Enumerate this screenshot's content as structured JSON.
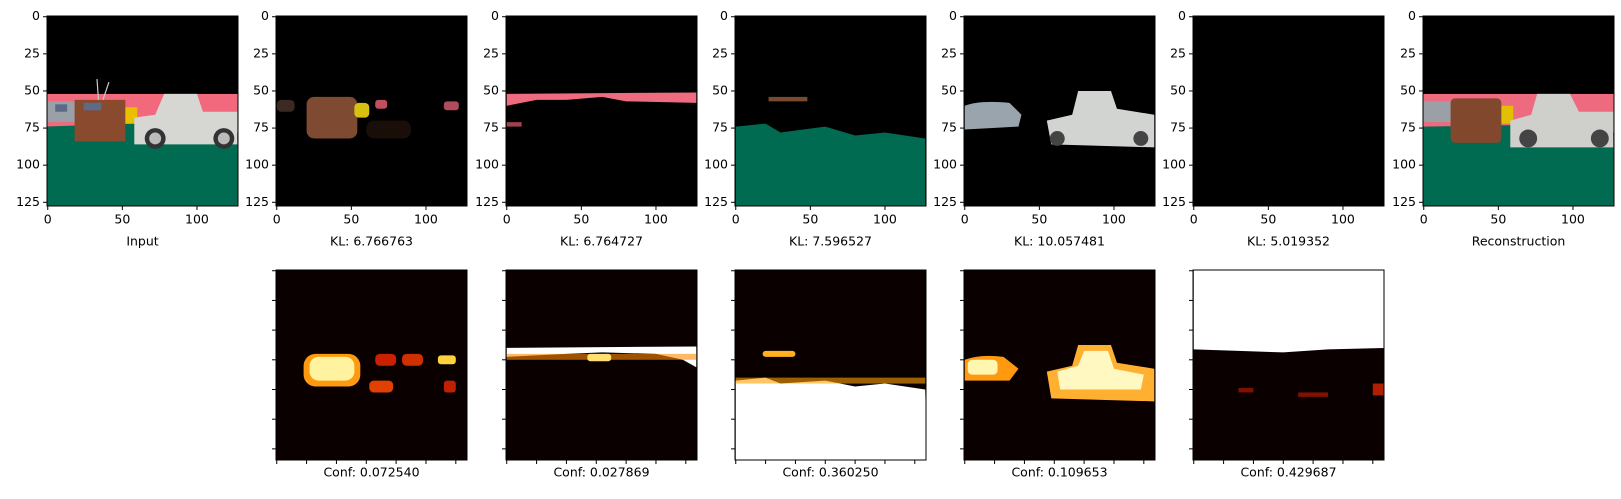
{
  "panels": [
    {
      "caption": "Input"
    },
    {
      "caption": "KL: 6.766763"
    },
    {
      "caption": "KL: 6.764727"
    },
    {
      "caption": "KL: 7.596527"
    },
    {
      "caption": "KL: 10.057481"
    },
    {
      "caption": "KL: 5.019352"
    },
    {
      "caption": "Reconstruction"
    }
  ],
  "confidence_maps": [
    {
      "caption": "Conf: 0.072540"
    },
    {
      "caption": "Conf: 0.027869"
    },
    {
      "caption": "Conf: 0.360250"
    },
    {
      "caption": "Conf: 0.109653"
    },
    {
      "caption": "Conf: 0.429687"
    }
  ],
  "axes": {
    "xlim": [
      -0.5,
      127.5
    ],
    "ylim": [
      127.5,
      -0.5
    ],
    "xticks": [
      0,
      50,
      100
    ],
    "yticks": [
      0,
      25,
      50,
      75,
      100,
      125
    ]
  },
  "map_ticks": [
    0,
    20,
    40,
    60,
    80,
    100,
    120
  ]
}
